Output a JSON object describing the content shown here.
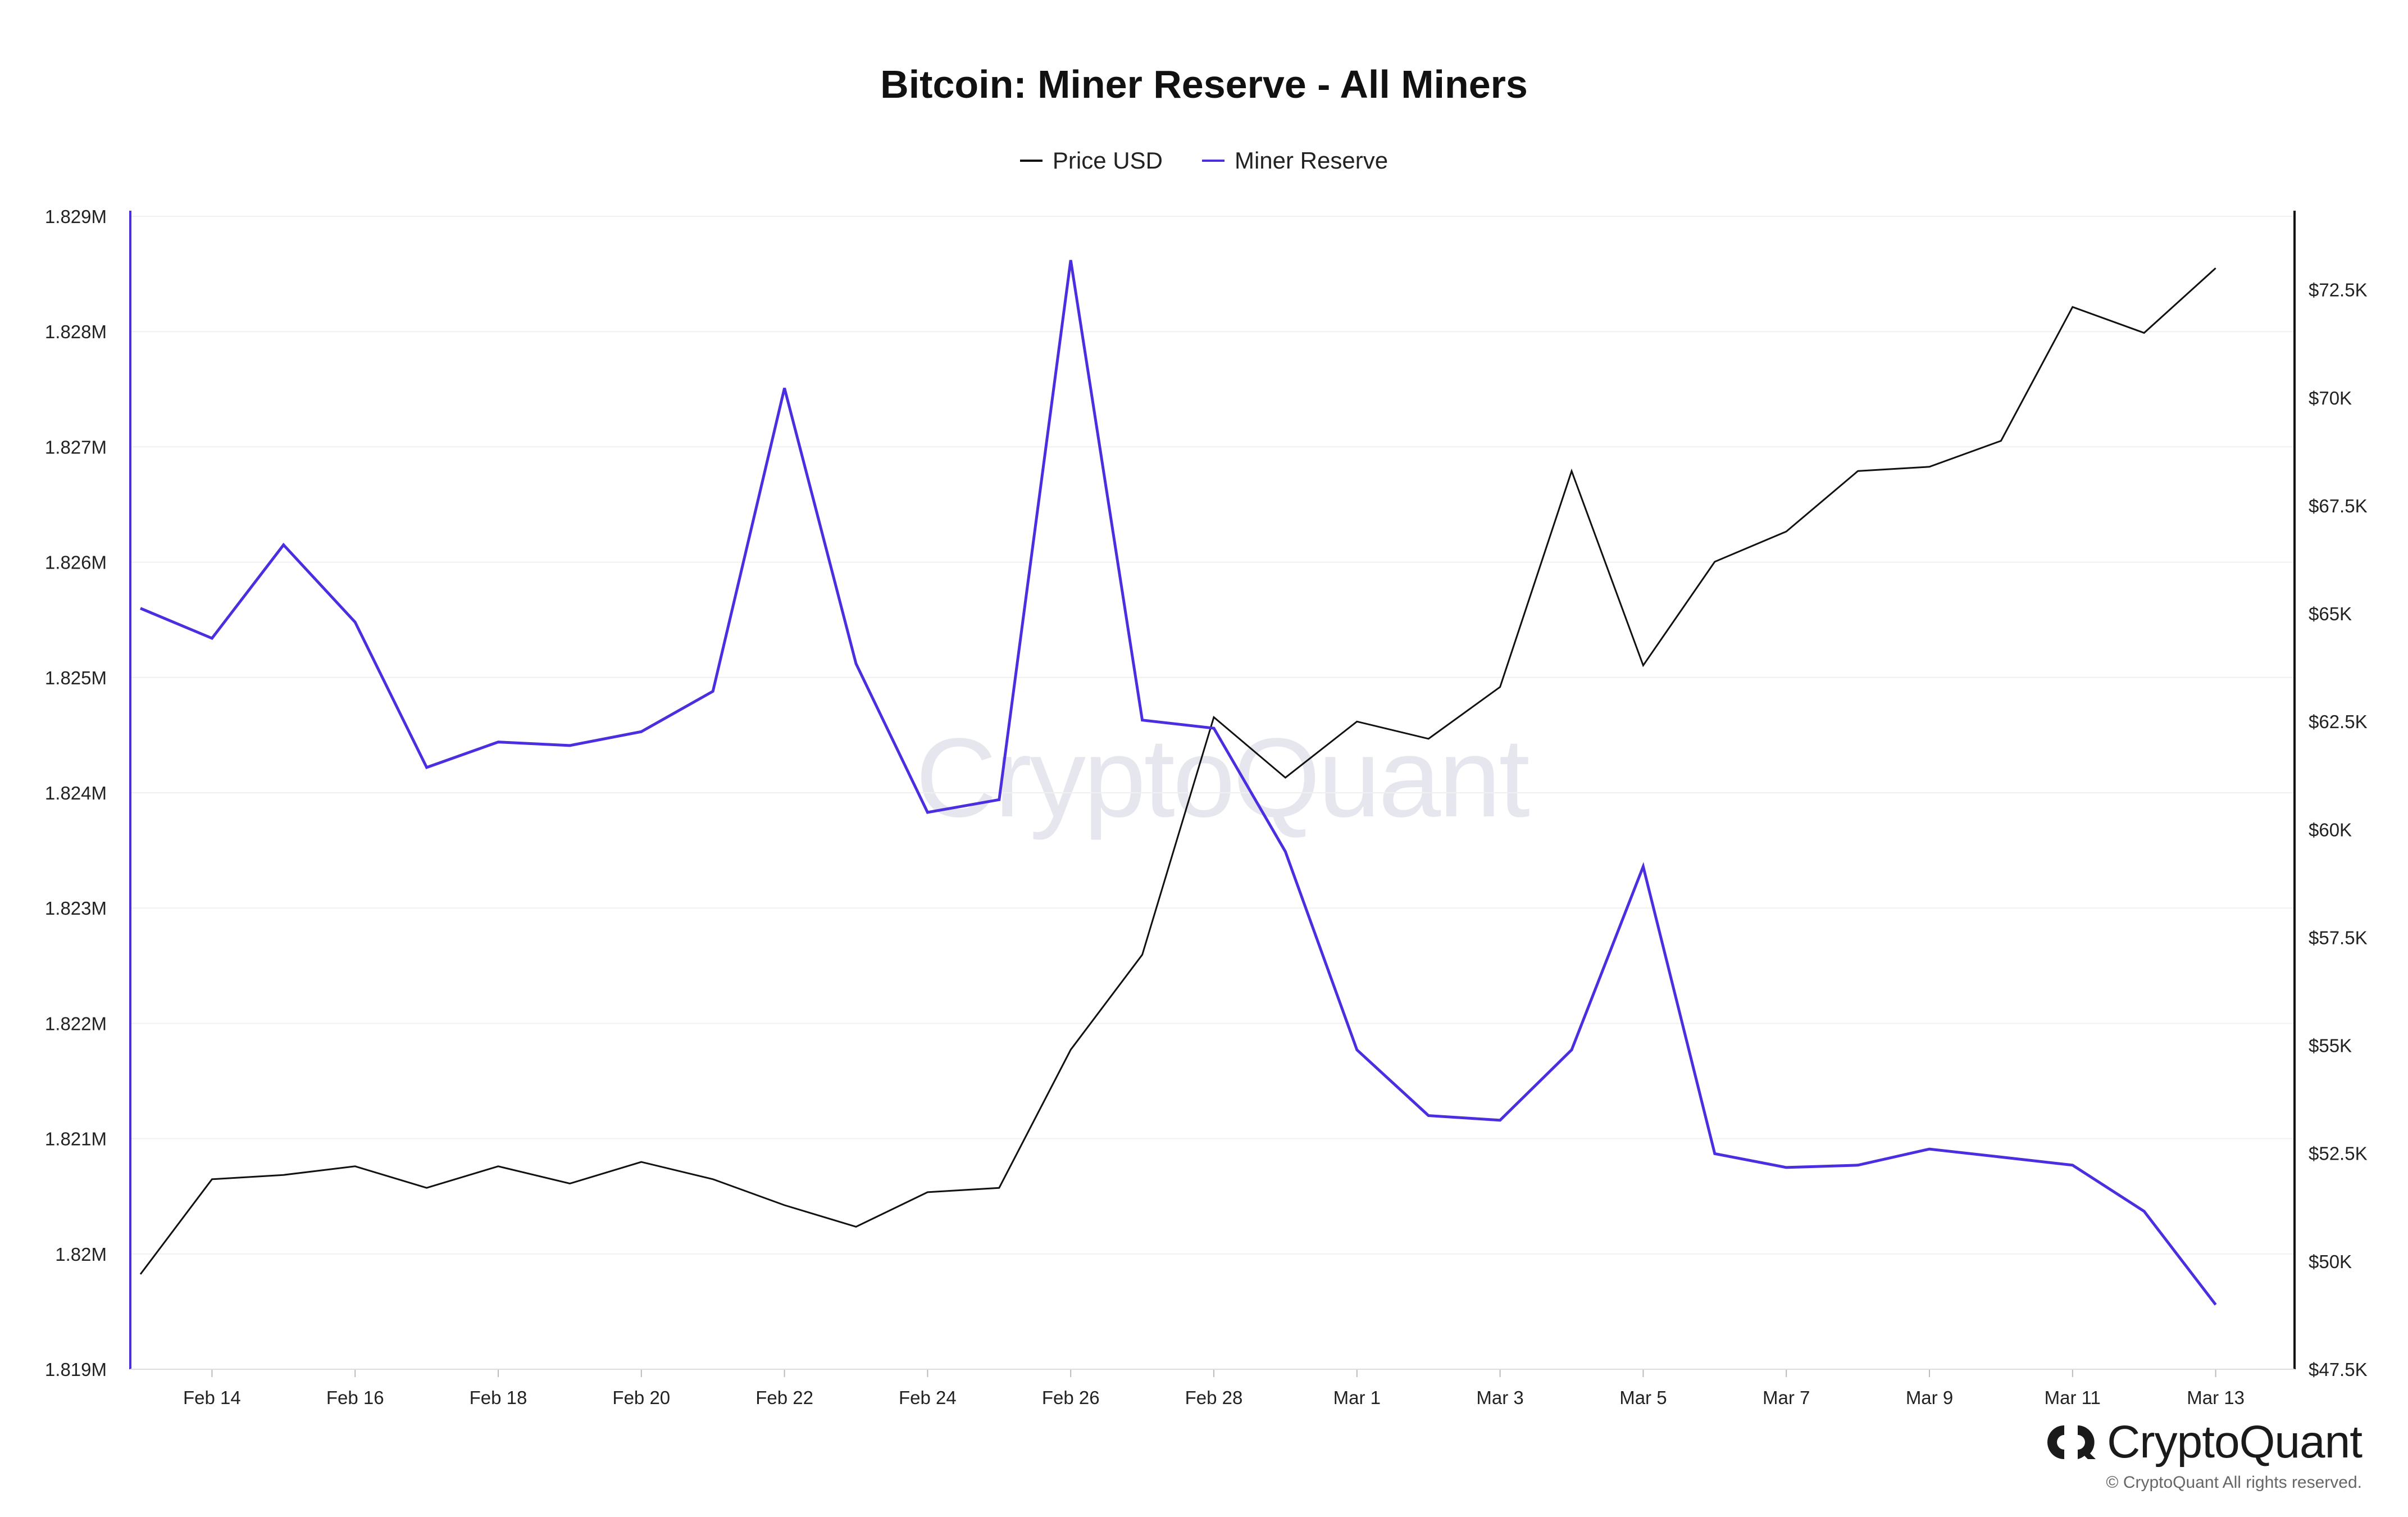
{
  "watermark": "CryptoQuant",
  "brand": {
    "name": "CryptoQuant",
    "copyright": "© CryptoQuant All rights reserved.",
    "logo_icon": "cryptoquant-logo-icon"
  },
  "colors": {
    "price": "#111111",
    "reserve": "#4a2ee0",
    "grid": "#f0f0f0"
  },
  "chart_data": {
    "type": "line",
    "title": "Bitcoin: Miner Reserve - All Miners",
    "legend_position": "top-center",
    "grid": true,
    "x": [
      "Feb 13",
      "Feb 14",
      "Feb 15",
      "Feb 16",
      "Feb 17",
      "Feb 18",
      "Feb 19",
      "Feb 20",
      "Feb 21",
      "Feb 22",
      "Feb 23",
      "Feb 24",
      "Feb 25",
      "Feb 26",
      "Feb 27",
      "Feb 28",
      "Feb 29",
      "Mar 1",
      "Mar 2",
      "Mar 3",
      "Mar 4",
      "Mar 5",
      "Mar 6",
      "Mar 7",
      "Mar 8",
      "Mar 9",
      "Mar 10",
      "Mar 11",
      "Mar 12",
      "Mar 13"
    ],
    "x_ticks": [
      "Feb 14",
      "Feb 16",
      "Feb 18",
      "Feb 20",
      "Feb 22",
      "Feb 24",
      "Feb 26",
      "Feb 28",
      "Mar 1",
      "Mar 3",
      "Mar 5",
      "Mar 7",
      "Mar 9",
      "Mar 11",
      "Mar 13"
    ],
    "y_left": {
      "ticks": [
        "1.829M",
        "1.828M",
        "1.827M",
        "1.826M",
        "1.825M",
        "1.824M",
        "1.823M",
        "1.822M",
        "1.821M",
        "1.82M",
        "1.819M"
      ],
      "range": [
        1819000,
        1829000
      ]
    },
    "y_right": {
      "ticks": [
        "$72.5K",
        "$70K",
        "$67.5K",
        "$65K",
        "$62.5K",
        "$60K",
        "$57.5K",
        "$55K",
        "$52.5K",
        "$50K",
        "$47.5K"
      ],
      "range": [
        47500,
        74200
      ]
    },
    "series": [
      {
        "name": "Price USD",
        "axis": "right",
        "values": [
          49700,
          51900,
          52000,
          52200,
          51700,
          52200,
          51800,
          52300,
          51900,
          51300,
          50800,
          51600,
          51700,
          54900,
          57100,
          62600,
          61200,
          62500,
          62100,
          63300,
          68300,
          63800,
          66200,
          66900,
          68300,
          68400,
          69000,
          72100,
          71500,
          73000
        ]
      },
      {
        "name": "Miner Reserve",
        "axis": "left",
        "values": [
          1825600,
          1825340,
          1826150,
          1825480,
          1824220,
          1824440,
          1824410,
          1824530,
          1824880,
          1827510,
          1825120,
          1823830,
          1823940,
          1828620,
          1824630,
          1824560,
          1823490,
          1821770,
          1821200,
          1821160,
          1821770,
          1823360,
          1820870,
          1820750,
          1820770,
          1820910,
          1820840,
          1820770,
          1820370,
          1819560
        ]
      }
    ]
  }
}
